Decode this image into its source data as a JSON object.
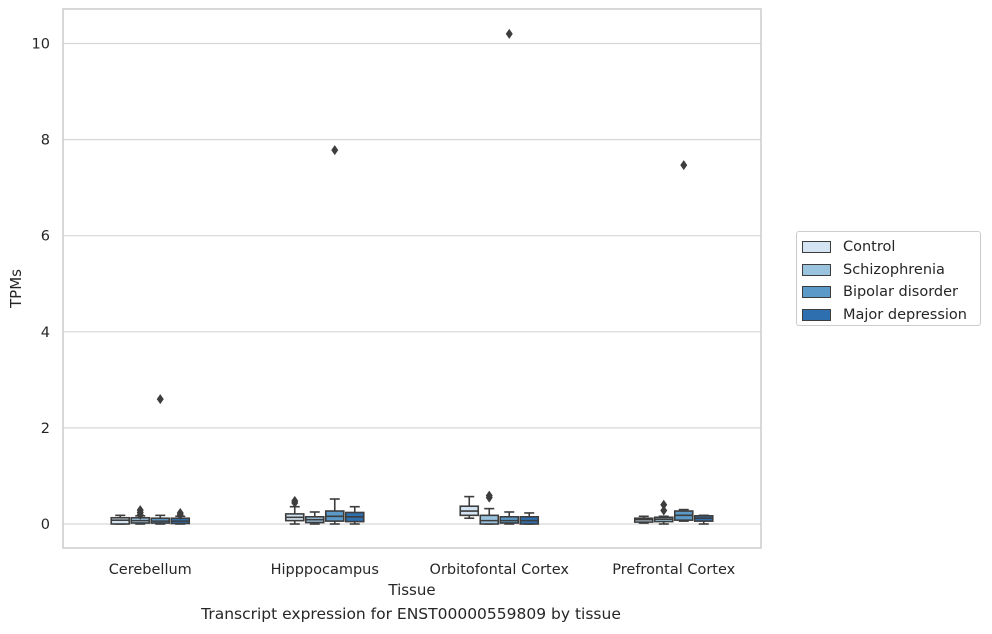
{
  "caption": "Transcript expression for ENST00000559809 by tissue",
  "chart_data": {
    "type": "box",
    "title": "",
    "xlabel": "Tissue",
    "ylabel": "TPMs",
    "ylim": [
      -0.5,
      10.7
    ],
    "yticks": [
      0,
      2,
      4,
      6,
      8,
      10
    ],
    "grid": true,
    "categories": [
      "Cerebellum",
      "Hipppocampus",
      "Orbitofontal Cortex",
      "Prefrontal Cortex"
    ],
    "legend_position": "right",
    "series": [
      {
        "name": "Control",
        "color": "#d4e4f2",
        "boxes": [
          {
            "q1": 0.0,
            "median": 0.08,
            "q3": 0.13,
            "whislo": 0.0,
            "whishi": 0.18,
            "fliers": []
          },
          {
            "q1": 0.07,
            "median": 0.14,
            "q3": 0.21,
            "whislo": 0.0,
            "whishi": 0.36,
            "fliers": [
              0.44,
              0.48
            ]
          },
          {
            "q1": 0.18,
            "median": 0.27,
            "q3": 0.37,
            "whislo": 0.12,
            "whislo_note": "",
            "whishi": 0.57,
            "fliers": []
          },
          {
            "q1": 0.04,
            "median": 0.09,
            "q3": 0.12,
            "whislo": 0.02,
            "whishi": 0.16,
            "fliers": []
          }
        ]
      },
      {
        "name": "Schizophrenia",
        "color": "#9ac3de",
        "boxes": [
          {
            "q1": 0.02,
            "median": 0.07,
            "q3": 0.13,
            "whislo": 0.0,
            "whishi": 0.17,
            "fliers": [
              0.19,
              0.24,
              0.29
            ]
          },
          {
            "q1": 0.03,
            "median": 0.09,
            "q3": 0.15,
            "whislo": 0.0,
            "whishi": 0.25,
            "fliers": []
          },
          {
            "q1": 0.0,
            "median": 0.07,
            "q3": 0.18,
            "whislo": 0.0,
            "whishi": 0.32,
            "fliers": [
              0.55,
              0.59
            ]
          },
          {
            "q1": 0.05,
            "median": 0.1,
            "q3": 0.14,
            "whislo": 0.0,
            "whishi": 0.16,
            "fliers": [
              0.28,
              0.4
            ]
          }
        ]
      },
      {
        "name": "Bipolar disorder",
        "color": "#5b9ac8",
        "boxes": [
          {
            "q1": 0.02,
            "median": 0.06,
            "q3": 0.12,
            "whislo": 0.0,
            "whishi": 0.18,
            "fliers": [
              2.6
            ]
          },
          {
            "q1": 0.06,
            "median": 0.16,
            "q3": 0.27,
            "whislo": 0.0,
            "whishi": 0.52,
            "fliers": [
              7.78
            ]
          },
          {
            "q1": 0.02,
            "median": 0.07,
            "q3": 0.15,
            "whislo": 0.0,
            "whishi": 0.25,
            "fliers": [
              10.2
            ]
          },
          {
            "q1": 0.08,
            "median": 0.18,
            "q3": 0.27,
            "whislo": 0.06,
            "whishi": 0.3,
            "fliers": [
              7.47
            ]
          }
        ]
      },
      {
        "name": "Major depression",
        "color": "#2e6fb0",
        "boxes": [
          {
            "q1": 0.01,
            "median": 0.06,
            "q3": 0.12,
            "whislo": 0.0,
            "whishi": 0.16,
            "fliers": [
              0.19,
              0.23
            ]
          },
          {
            "q1": 0.05,
            "median": 0.15,
            "q3": 0.24,
            "whislo": 0.0,
            "whishi": 0.36,
            "fliers": []
          },
          {
            "q1": 0.0,
            "median": 0.07,
            "q3": 0.15,
            "whislo": 0.0,
            "whishi": 0.23,
            "fliers": []
          },
          {
            "q1": 0.06,
            "median": 0.12,
            "q3": 0.17,
            "whislo": 0.0,
            "whishi": 0.18,
            "fliers": []
          }
        ]
      }
    ]
  }
}
